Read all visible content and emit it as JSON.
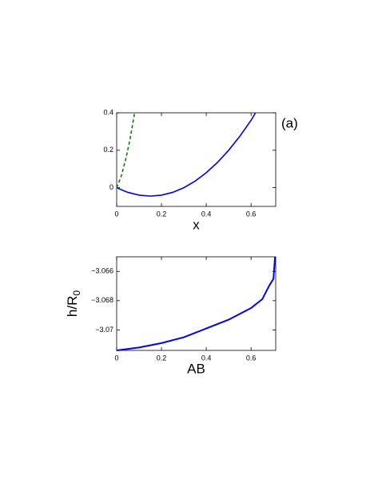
{
  "chart_data": [
    {
      "type": "line",
      "annotation": "(a)",
      "xlabel": "x",
      "xlim": [
        0,
        0.71
      ],
      "xticks": [
        0,
        0.2,
        0.4,
        0.6
      ],
      "ylim": [
        -0.1,
        0.4
      ],
      "yticks": [
        0,
        0.2,
        0.4
      ],
      "series": [
        {
          "color": "#0000ff",
          "style": "solid",
          "x": [
            0,
            0.05,
            0.1,
            0.15,
            0.2,
            0.25,
            0.3,
            0.35,
            0.4,
            0.45,
            0.5,
            0.55,
            0.6,
            0.62
          ],
          "values": [
            0,
            -0.025,
            -0.04,
            -0.045,
            -0.04,
            -0.025,
            0,
            0.035,
            0.08,
            0.135,
            0.2,
            0.275,
            0.36,
            0.4
          ]
        },
        {
          "color": "#008000",
          "style": "dashed",
          "x": [
            0,
            0.02,
            0.04,
            0.06,
            0.08
          ],
          "values": [
            0,
            0.06,
            0.15,
            0.26,
            0.4
          ]
        }
      ]
    },
    {
      "type": "line",
      "xlabel": "AB",
      "ylabel": "h/R",
      "ylabel_sub": "0",
      "xlim": [
        0,
        0.71
      ],
      "xticks": [
        0,
        0.2,
        0.4,
        0.6
      ],
      "ylim": [
        -3.0714,
        -3.065
      ],
      "yticks": [
        {
          "value": -3.066,
          "label": "−3.066"
        },
        {
          "value": -3.068,
          "label": "−3.068"
        },
        {
          "value": -3.07,
          "label": "−3.07"
        }
      ],
      "series": [
        {
          "color": "#0000ff",
          "style": "solid",
          "x": [
            0,
            0.1,
            0.2,
            0.3,
            0.4,
            0.5,
            0.6,
            0.65,
            0.68,
            0.7,
            0.707
          ],
          "values": [
            -3.0714,
            -3.0712,
            -3.0709,
            -3.0705,
            -3.0699,
            -3.0693,
            -3.0685,
            -3.0679,
            -3.067,
            -3.0665,
            -3.065
          ]
        }
      ]
    }
  ]
}
